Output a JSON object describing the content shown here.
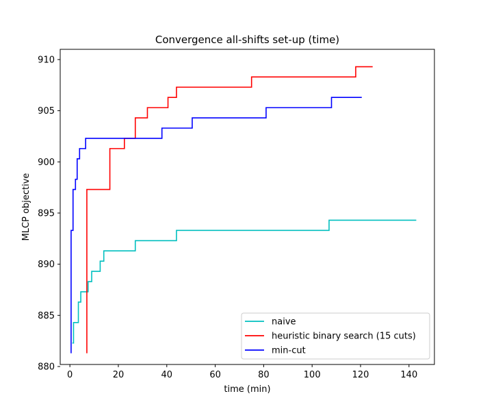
{
  "chart_data": {
    "type": "line",
    "title": "Convergence all-shifts set-up (time)",
    "xlabel": "time (min)",
    "ylabel": "MLCP objective",
    "xlim": [
      -4,
      150.5
    ],
    "ylim": [
      880.2,
      911.0
    ],
    "xticks": [
      0,
      20,
      40,
      60,
      80,
      100,
      120,
      140
    ],
    "yticks": [
      880,
      885,
      890,
      895,
      900,
      905,
      910
    ],
    "grid": false,
    "legend_position": "lower-right",
    "step": "post",
    "series": [
      {
        "name": "naive",
        "color": "#00bfbf",
        "points": [
          [
            1.0,
            882.3
          ],
          [
            1.5,
            884.3
          ],
          [
            3.5,
            886.3
          ],
          [
            4.5,
            887.3
          ],
          [
            7.5,
            888.3
          ],
          [
            9.0,
            889.3
          ],
          [
            12.5,
            890.3
          ],
          [
            14.0,
            891.3
          ],
          [
            27.0,
            892.3
          ],
          [
            44.0,
            893.3
          ],
          [
            107.0,
            894.3
          ],
          [
            143.0,
            894.3
          ]
        ]
      },
      {
        "name": "heuristic binary search (15 cuts)",
        "color": "#ff0000",
        "points": [
          [
            7.0,
            881.3
          ],
          [
            7.0,
            897.3
          ],
          [
            16.5,
            901.3
          ],
          [
            22.5,
            902.3
          ],
          [
            27.0,
            904.3
          ],
          [
            32.0,
            905.3
          ],
          [
            40.5,
            906.3
          ],
          [
            44.0,
            907.3
          ],
          [
            75.0,
            908.3
          ],
          [
            118.0,
            909.3
          ],
          [
            125.0,
            909.3
          ]
        ]
      },
      {
        "name": "min-cut",
        "color": "#0000ff",
        "points": [
          [
            0.5,
            881.3
          ],
          [
            0.5,
            893.3
          ],
          [
            1.3,
            897.3
          ],
          [
            2.3,
            898.3
          ],
          [
            3.0,
            900.3
          ],
          [
            4.0,
            901.3
          ],
          [
            6.5,
            902.3
          ],
          [
            38.0,
            903.3
          ],
          [
            50.5,
            904.3
          ],
          [
            81.0,
            905.3
          ],
          [
            108.0,
            906.3
          ],
          [
            120.5,
            906.3
          ]
        ]
      }
    ]
  }
}
